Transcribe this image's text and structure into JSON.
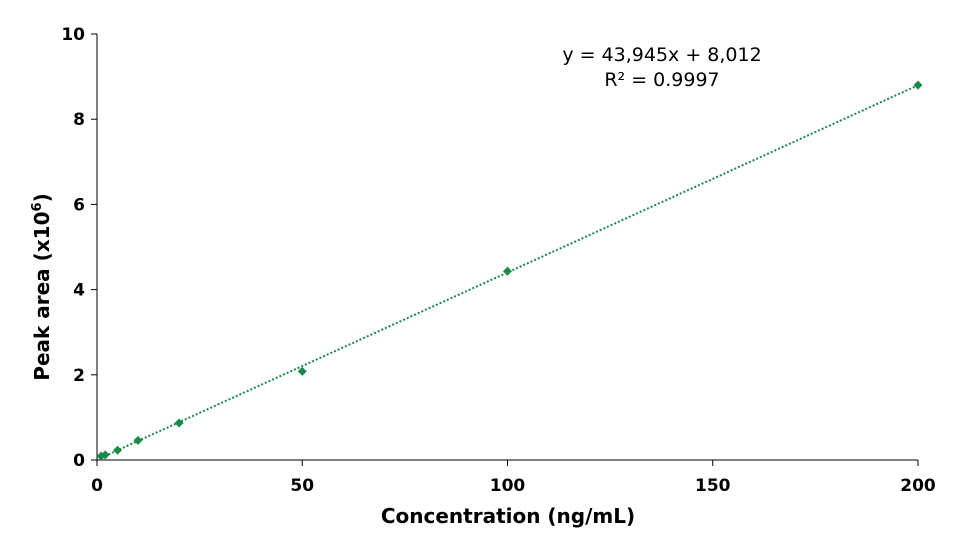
{
  "chart_data": {
    "type": "scatter",
    "xlabel": "Concentration (ng/mL)",
    "ylabel_main": "Peak area (x10",
    "ylabel_sup": "6",
    "ylabel_close": ")",
    "xlim": [
      0,
      200
    ],
    "ylim": [
      0,
      10
    ],
    "x_ticks": [
      "0",
      "50",
      "100",
      "150",
      "200"
    ],
    "y_ticks": [
      "0",
      "2",
      "4",
      "6",
      "8",
      "10"
    ],
    "grid": false,
    "legend": "none",
    "series": [
      {
        "x": [
          1,
          2,
          5,
          10,
          20,
          50,
          100,
          200
        ],
        "y": [
          0.09,
          0.12,
          0.23,
          0.46,
          0.87,
          2.08,
          4.43,
          8.8
        ],
        "marker": "diamond",
        "color": "#1a8a4a"
      }
    ],
    "trendline": {
      "style": "dotted",
      "color": "#1a8a4a",
      "slope": 0.043945,
      "intercept": 0.008012
    },
    "annotations": {
      "equation": "y = 43,945x + 8,012",
      "r_squared": "R² = 0.9997"
    }
  }
}
